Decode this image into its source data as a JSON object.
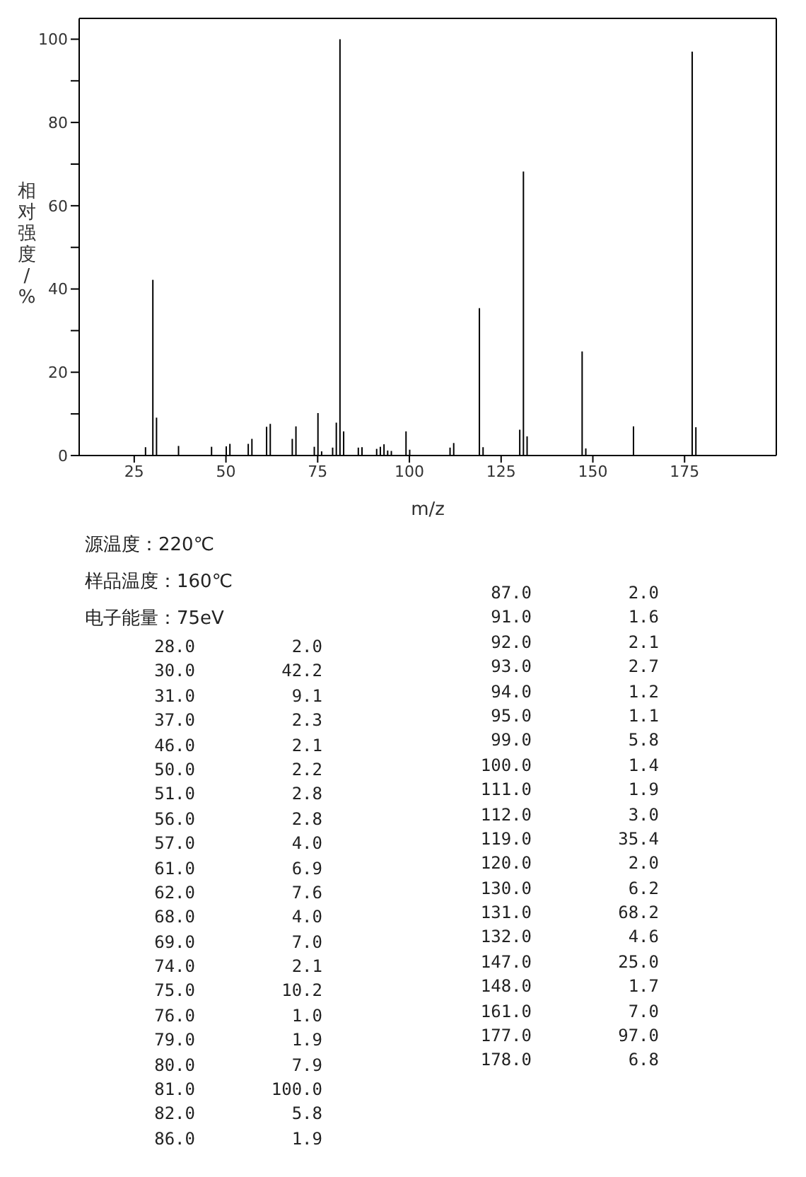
{
  "chart_data": [
    {
      "type": "bar",
      "xlabel": "m/z",
      "ylabel": "相对强度/%",
      "x": [
        28,
        30,
        31,
        37,
        46,
        50,
        51,
        56,
        57,
        61,
        62,
        68,
        69,
        74,
        75,
        76,
        79,
        80,
        81,
        82,
        86,
        87,
        91,
        92,
        93,
        94,
        95,
        99,
        100,
        111,
        112,
        119,
        120,
        130,
        131,
        132,
        147,
        148,
        161,
        177,
        178
      ],
      "values": [
        2.0,
        42.2,
        9.1,
        2.3,
        2.1,
        2.2,
        2.8,
        2.8,
        4.0,
        6.9,
        7.6,
        4.0,
        7.0,
        2.1,
        10.2,
        1.0,
        1.9,
        7.9,
        100.0,
        5.8,
        1.9,
        2.0,
        1.6,
        2.1,
        2.7,
        1.2,
        1.1,
        5.8,
        1.4,
        1.9,
        3.0,
        35.4,
        2.0,
        6.2,
        68.2,
        4.6,
        25.0,
        1.7,
        7.0,
        97.0,
        6.8
      ],
      "color": "#000000",
      "xlim": [
        10,
        200
      ],
      "xticks": [
        25,
        50,
        75,
        100,
        125,
        150,
        175
      ],
      "ylim": [
        0,
        105
      ],
      "yticks": [
        0,
        {
          "value": 10,
          "label": null
        },
        20,
        {
          "value": 30,
          "label": null
        },
        40,
        {
          "value": 50,
          "label": null
        },
        60,
        {
          "value": 70,
          "label": null
        },
        80,
        {
          "value": 90,
          "label": null
        },
        100
      ],
      "annotations": [
        "源温度：220℃",
        "样品温度：160℃",
        "电子能量：75eV"
      ]
    },
    {
      "type": "other",
      "annotations": [
        "28.0",
        "2.0",
        "30.0",
        "42.2",
        "31.0",
        "9.1",
        "37.0",
        "2.3",
        "46.0",
        "2.1",
        "50.0",
        "2.2",
        "51.0",
        "2.8",
        "56.0",
        "2.8",
        "57.0",
        "4.0",
        "61.0",
        "6.9",
        "62.0",
        "7.6",
        "68.0",
        "4.0",
        "69.0",
        "7.0",
        "74.0",
        "2.1",
        "75.0",
        "10.2",
        "76.0",
        "1.0",
        "79.0",
        "1.9",
        "80.0",
        "7.9",
        "81.0",
        "100.0",
        "82.0",
        "5.8",
        "86.0",
        "1.9",
        "87.0",
        "2.0",
        "91.0",
        "1.6",
        "92.0",
        "2.1",
        "93.0",
        "2.7",
        "94.0",
        "1.2",
        "95.0",
        "1.1",
        "99.0",
        "5.8",
        "100.0",
        "1.4",
        "111.0",
        "1.9",
        "112.0",
        "3.0",
        "119.0",
        "35.4",
        "120.0",
        "2.0",
        "130.0",
        "6.2",
        "131.0",
        "68.2",
        "132.0",
        "4.6",
        "147.0",
        "25.0",
        "148.0",
        "1.7",
        "161.0",
        "7.0",
        "177.0",
        "97.0",
        "178.0",
        "6.8"
      ]
    }
  ]
}
